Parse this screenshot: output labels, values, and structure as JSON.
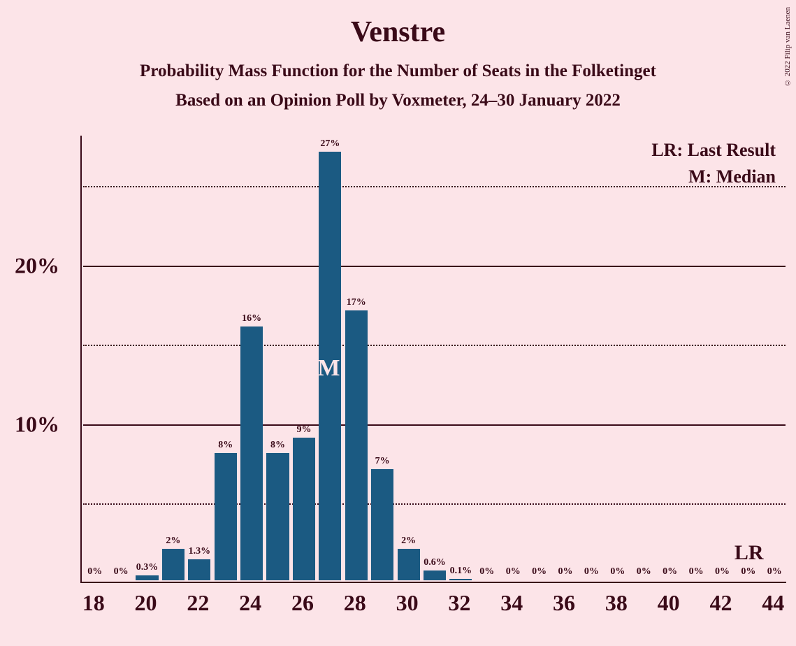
{
  "title": "Venstre",
  "subtitle": "Probability Mass Function for the Number of Seats in the Folketinget",
  "subtitle2": "Based on an Opinion Poll by Voxmeter, 24–30 January 2022",
  "copyright": "© 2022 Filip van Laenen",
  "legend_lr": "LR: Last Result",
  "legend_m": "M: Median",
  "lr_marker": "LR",
  "median_marker": "M",
  "chart": {
    "type": "bar",
    "background_color": "#fce4e8",
    "bar_color": "#1b5a82",
    "axis_color": "#3a0a18",
    "text_color": "#3a0a18",
    "ylim": [
      0,
      28
    ],
    "y_ticks_solid": [
      10,
      20
    ],
    "y_ticks_dotted": [
      5,
      15,
      25
    ],
    "y_labels": {
      "10": "10%",
      "20": "20%"
    },
    "x_range": [
      18,
      44
    ],
    "x_tick_step": 2,
    "x_labels": [
      "18",
      "20",
      "22",
      "24",
      "26",
      "28",
      "30",
      "32",
      "34",
      "36",
      "38",
      "40",
      "42",
      "44"
    ],
    "bar_width_ratio": 0.86,
    "median_x": 27,
    "lr_x": 43,
    "bars": [
      {
        "x": 18,
        "pct": 0,
        "label": "0%"
      },
      {
        "x": 19,
        "pct": 0,
        "label": "0%"
      },
      {
        "x": 20,
        "pct": 0.3,
        "label": "0.3%"
      },
      {
        "x": 21,
        "pct": 2,
        "label": "2%"
      },
      {
        "x": 22,
        "pct": 1.3,
        "label": "1.3%"
      },
      {
        "x": 23,
        "pct": 8,
        "label": "8%"
      },
      {
        "x": 24,
        "pct": 16,
        "label": "16%"
      },
      {
        "x": 25,
        "pct": 8,
        "label": "8%"
      },
      {
        "x": 26,
        "pct": 9,
        "label": "9%"
      },
      {
        "x": 27,
        "pct": 27,
        "label": "27%"
      },
      {
        "x": 28,
        "pct": 17,
        "label": "17%"
      },
      {
        "x": 29,
        "pct": 7,
        "label": "7%"
      },
      {
        "x": 30,
        "pct": 2,
        "label": "2%"
      },
      {
        "x": 31,
        "pct": 0.6,
        "label": "0.6%"
      },
      {
        "x": 32,
        "pct": 0.1,
        "label": "0.1%"
      },
      {
        "x": 33,
        "pct": 0,
        "label": "0%"
      },
      {
        "x": 34,
        "pct": 0,
        "label": "0%"
      },
      {
        "x": 35,
        "pct": 0,
        "label": "0%"
      },
      {
        "x": 36,
        "pct": 0,
        "label": "0%"
      },
      {
        "x": 37,
        "pct": 0,
        "label": "0%"
      },
      {
        "x": 38,
        "pct": 0,
        "label": "0%"
      },
      {
        "x": 39,
        "pct": 0,
        "label": "0%"
      },
      {
        "x": 40,
        "pct": 0,
        "label": "0%"
      },
      {
        "x": 41,
        "pct": 0,
        "label": "0%"
      },
      {
        "x": 42,
        "pct": 0,
        "label": "0%"
      },
      {
        "x": 43,
        "pct": 0,
        "label": "0%"
      },
      {
        "x": 44,
        "pct": 0,
        "label": "0%"
      }
    ]
  }
}
